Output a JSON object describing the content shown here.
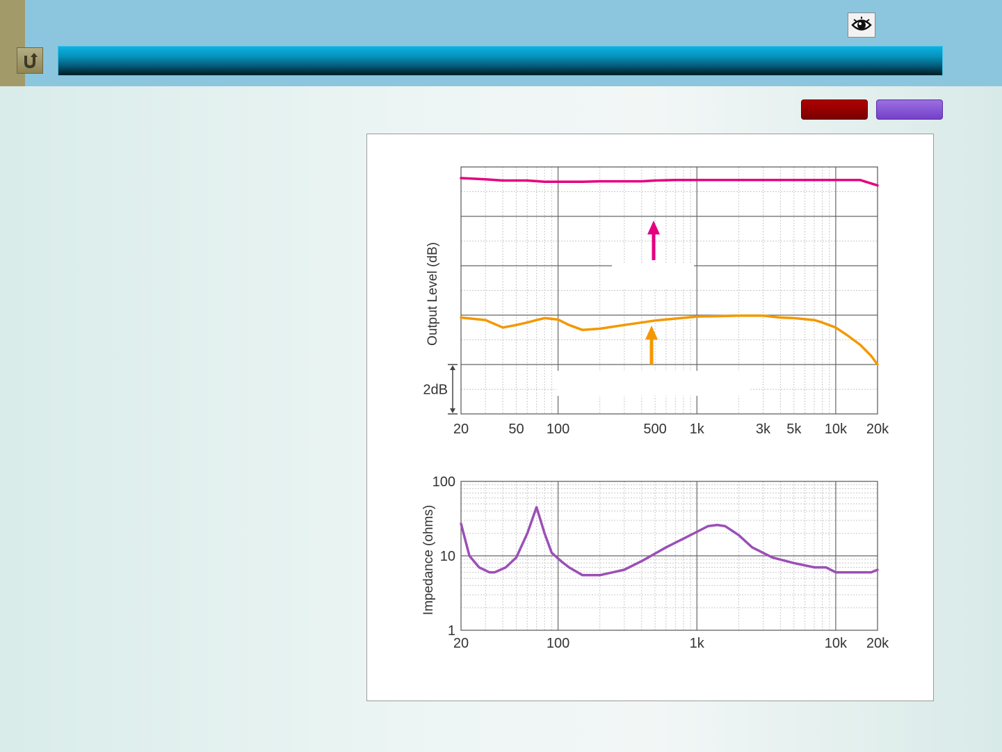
{
  "ui": {
    "back_icon": "undo-arrow-icon",
    "eye_icon": "eye-icon",
    "colors": {
      "top_bar": "#8bc6de",
      "left_strip": "#a39a6a",
      "red_button": "#9a0000",
      "purple_button": "#8455d4"
    }
  },
  "chart_data": [
    {
      "type": "line",
      "x_scale": "log",
      "xlim": [
        20,
        20000
      ],
      "ylabel": "Output Level (dB)",
      "xticks": [
        "20",
        "50",
        "100",
        "500",
        "1k",
        "3k",
        "5k",
        "10k",
        "20k"
      ],
      "scale_annotation": "2dB",
      "grid": true,
      "series": [
        {
          "color": "#e5007f",
          "x": [
            20,
            30,
            40,
            60,
            80,
            100,
            150,
            200,
            300,
            400,
            500,
            700,
            1000,
            1500,
            2000,
            3000,
            5000,
            7000,
            10000,
            15000,
            20000
          ],
          "y": [
            9.55,
            9.5,
            9.45,
            9.45,
            9.4,
            9.4,
            9.4,
            9.42,
            9.42,
            9.42,
            9.45,
            9.47,
            9.47,
            9.47,
            9.47,
            9.47,
            9.47,
            9.47,
            9.47,
            9.47,
            9.25
          ]
        },
        {
          "color": "#f39800",
          "x": [
            20,
            30,
            40,
            50,
            60,
            70,
            80,
            100,
            120,
            150,
            200,
            300,
            500,
            700,
            1000,
            1500,
            2000,
            3000,
            4000,
            5000,
            7000,
            8000,
            10000,
            12000,
            15000,
            18000,
            20000
          ],
          "y": [
            3.9,
            3.8,
            3.5,
            3.6,
            3.7,
            3.8,
            3.88,
            3.82,
            3.6,
            3.4,
            3.45,
            3.6,
            3.78,
            3.86,
            3.94,
            3.96,
            3.98,
            3.98,
            3.9,
            3.88,
            3.8,
            3.7,
            3.5,
            3.2,
            2.8,
            2.35,
            2.0
          ]
        }
      ]
    },
    {
      "type": "line",
      "x_scale": "log",
      "y_scale": "log",
      "xlim": [
        20,
        20000
      ],
      "ylim": [
        1,
        100
      ],
      "ylabel": "Impedance (ohms)",
      "xticks": [
        "20",
        "100",
        "1k",
        "10k",
        "20k"
      ],
      "yticks": [
        "1",
        "10",
        "100"
      ],
      "grid": true,
      "series": [
        {
          "color": "#9b4fb5",
          "x": [
            20,
            23,
            27,
            32,
            35,
            42,
            50,
            60,
            70,
            80,
            90,
            105,
            120,
            150,
            200,
            300,
            400,
            600,
            800,
            1000,
            1200,
            1400,
            1600,
            2000,
            2500,
            3500,
            5000,
            7000,
            8500,
            10000,
            13000,
            15000,
            18000,
            20000
          ],
          "y": [
            27,
            10,
            7,
            6,
            6,
            7,
            9.5,
            20,
            45,
            20,
            11,
            8.5,
            7,
            5.5,
            5.5,
            6.5,
            8.5,
            13,
            17,
            21,
            25,
            26,
            25,
            19,
            13,
            9.5,
            8,
            7,
            7,
            6,
            6,
            6,
            6,
            6.5
          ]
        }
      ]
    }
  ]
}
